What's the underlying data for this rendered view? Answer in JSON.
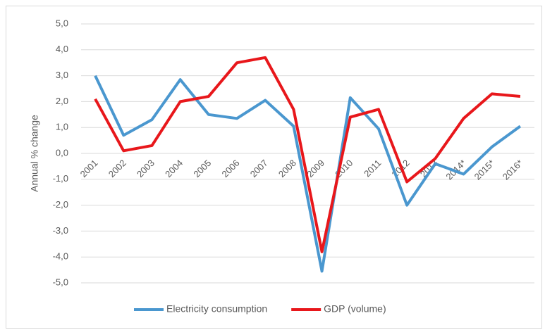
{
  "chart_data": {
    "type": "line",
    "y_label": "Annual % change",
    "categories": [
      "2001",
      "2002",
      "2003",
      "2004",
      "2005",
      "2006",
      "2007",
      "2008",
      "2009",
      "2010",
      "2011",
      "2012",
      "2013",
      "2014*",
      "2015*",
      "2016*"
    ],
    "series": [
      {
        "name": "Electricity consumption",
        "color": "#4a97cf",
        "values": [
          3.0,
          0.7,
          1.3,
          2.85,
          1.5,
          1.35,
          2.05,
          1.05,
          -4.55,
          2.15,
          0.95,
          -2.0,
          -0.4,
          -0.8,
          0.25,
          1.05
        ]
      },
      {
        "name": "GDP (volume)",
        "color": "#e8171b",
        "values": [
          2.1,
          0.1,
          0.3,
          2.0,
          2.2,
          3.5,
          3.7,
          1.7,
          -3.8,
          1.4,
          1.7,
          -1.1,
          -0.2,
          1.35,
          2.3,
          2.2
        ]
      }
    ],
    "ylim": [
      -5,
      5
    ],
    "yticks": [
      {
        "value": 5,
        "label": "5,0"
      },
      {
        "value": 4,
        "label": "4,0"
      },
      {
        "value": 3,
        "label": "3,0"
      },
      {
        "value": 2,
        "label": "2,0"
      },
      {
        "value": 1,
        "label": "1,0"
      },
      {
        "value": 0,
        "label": "0,0"
      },
      {
        "value": -1,
        "label": "-1,0"
      },
      {
        "value": -2,
        "label": "-2,0"
      },
      {
        "value": -3,
        "label": "-3,0"
      },
      {
        "value": -4,
        "label": "-4,0"
      },
      {
        "value": -5,
        "label": "-5,0"
      }
    ],
    "grid": true,
    "legend": "bottom"
  }
}
